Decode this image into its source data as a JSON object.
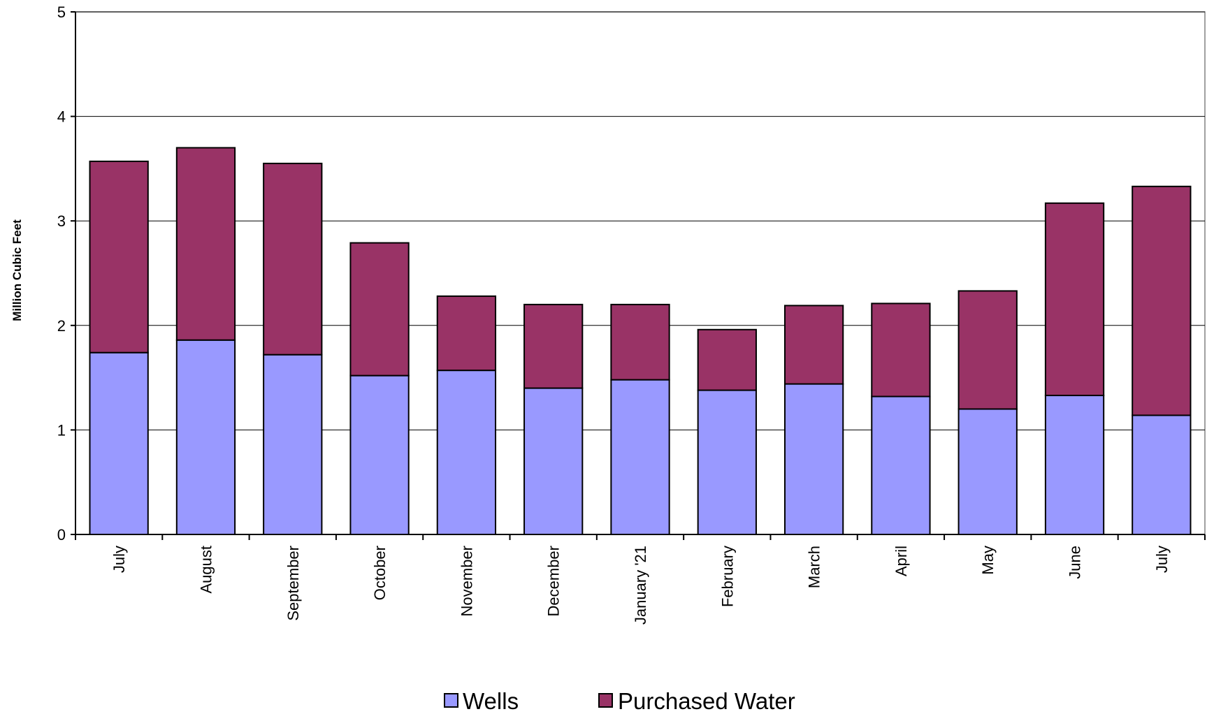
{
  "chart_data": {
    "type": "bar",
    "stacked": true,
    "categories": [
      "July",
      "August",
      "September",
      "October",
      "November",
      "December",
      "January '21",
      "February",
      "March",
      "April",
      "May",
      "June",
      "July"
    ],
    "series": [
      {
        "name": "Wells",
        "color": "#9999FF",
        "values": [
          1.74,
          1.86,
          1.72,
          1.52,
          1.57,
          1.4,
          1.48,
          1.38,
          1.44,
          1.32,
          1.2,
          1.33,
          1.14
        ]
      },
      {
        "name": "Purchased Water",
        "color": "#993366",
        "values": [
          1.83,
          1.84,
          1.83,
          1.27,
          0.71,
          0.8,
          0.72,
          0.58,
          0.75,
          0.89,
          1.13,
          1.84,
          2.19
        ]
      }
    ],
    "title": "",
    "xlabel": "",
    "ylabel": "Million Cubic Feet",
    "ylim": [
      0,
      5
    ],
    "yticks": [
      0,
      1,
      2,
      3,
      4,
      5
    ],
    "grid": true,
    "legend_position": "bottom"
  }
}
